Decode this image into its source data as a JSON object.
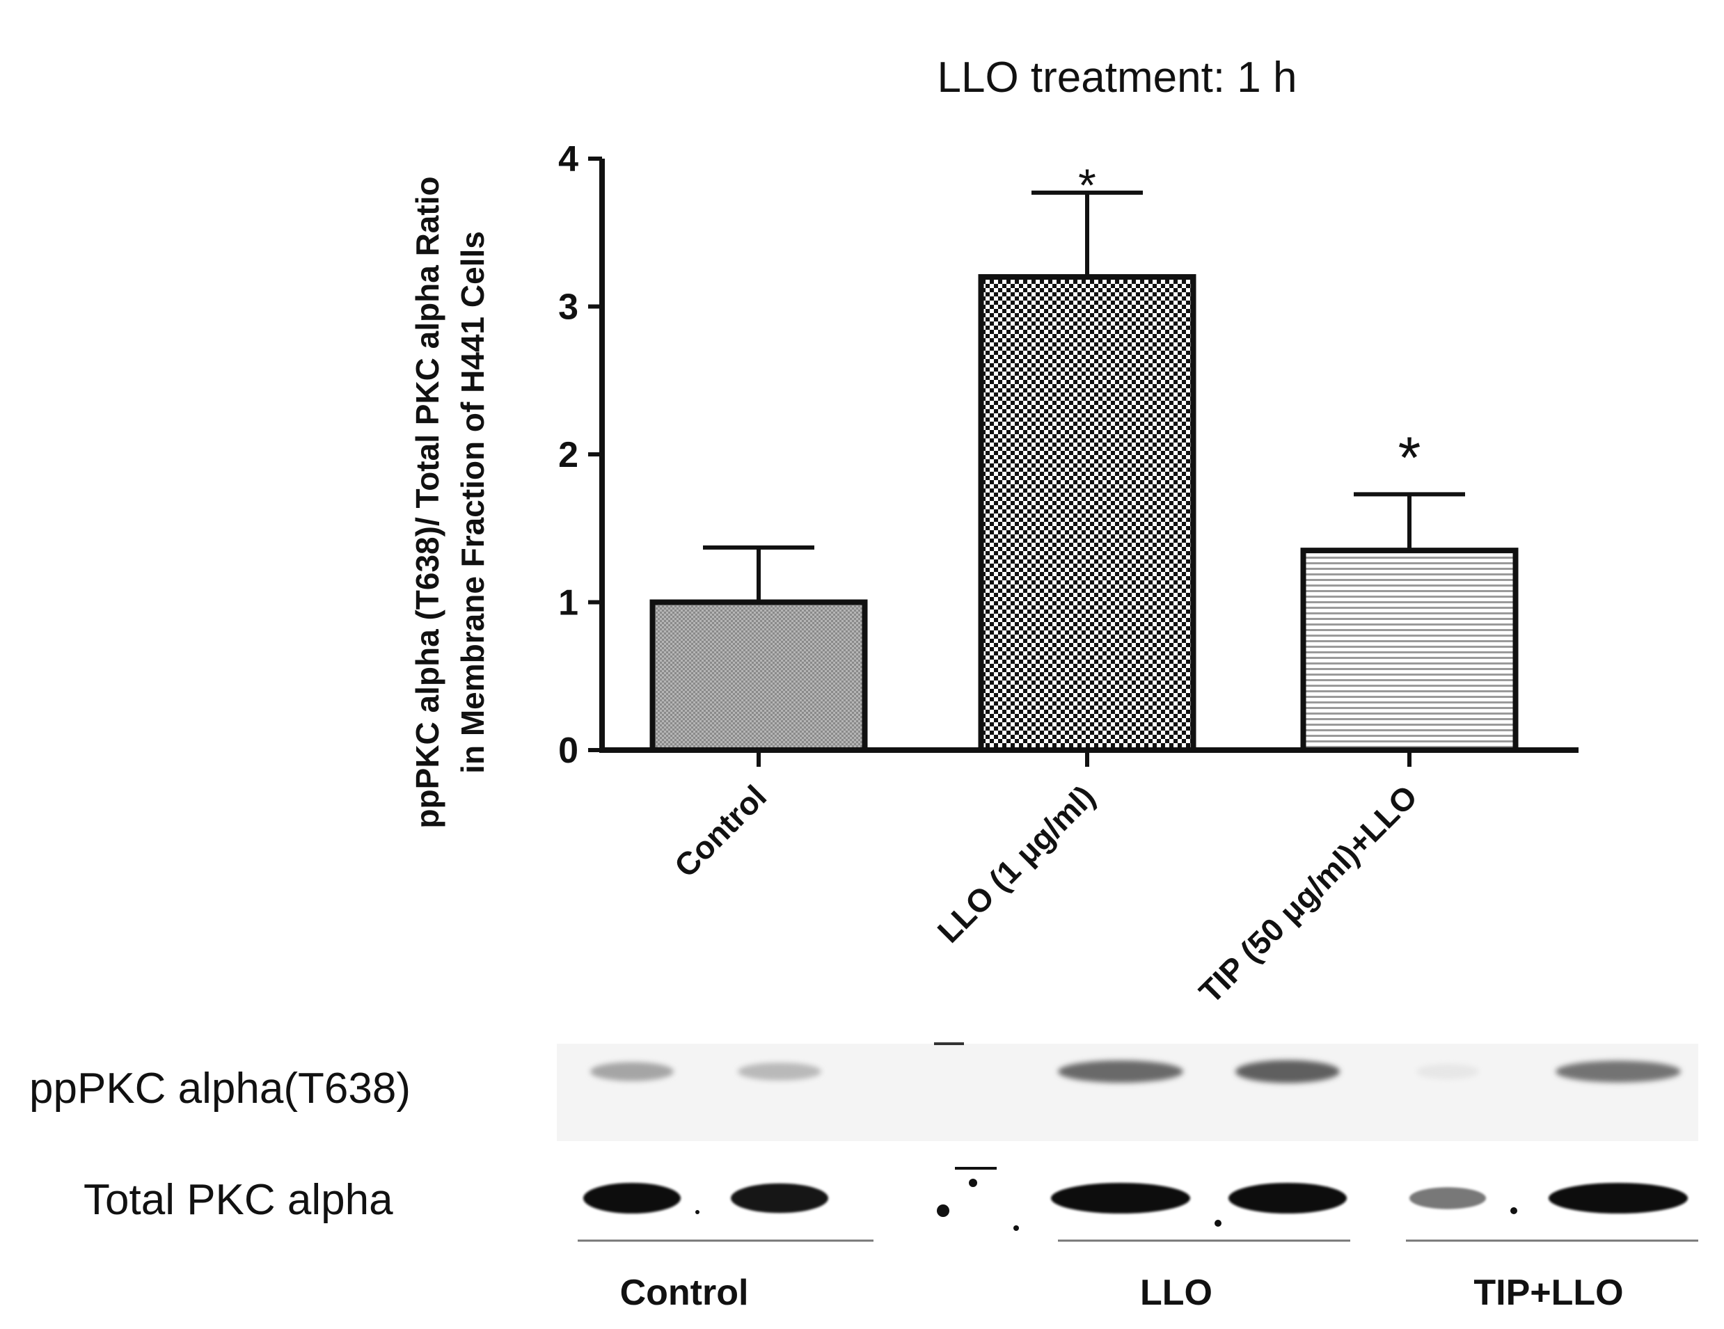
{
  "chart_data": {
    "type": "bar",
    "title": "LLO treatment: 1 h",
    "ylabel_line1": "ppPKC alpha (T638)/ Total PKC alpha Ratio",
    "ylabel_line2": "in Membrane Fraction of H441 Cells",
    "xlabel": "",
    "ylim": [
      0,
      4
    ],
    "yticks": [
      "0",
      "1",
      "2",
      "3",
      "4"
    ],
    "categories": [
      "Control",
      "LLO (1 μg/ml)",
      "TIP (50 μg/ml)+LLO"
    ],
    "values": [
      1.0,
      3.2,
      1.35
    ],
    "errors": [
      0.37,
      0.57,
      0.38
    ],
    "significance": [
      "",
      "*",
      "*"
    ],
    "patterns": [
      "fine-dots",
      "checkerboard",
      "horizontal-lines"
    ],
    "grid": false,
    "legend": "none"
  },
  "blot": {
    "row_labels": [
      "ppPKC alpha(T638)",
      "Total PKC alpha"
    ],
    "group_labels": [
      "Control",
      "LLO",
      "TIP+LLO"
    ],
    "band_intensity_ppPKC": [
      0.45,
      0.35,
      0.0,
      0.75,
      0.8,
      0.12,
      0.7
    ],
    "band_intensity_total": [
      1.0,
      0.95,
      0.2,
      1.0,
      1.0,
      0.55,
      1.0
    ]
  }
}
